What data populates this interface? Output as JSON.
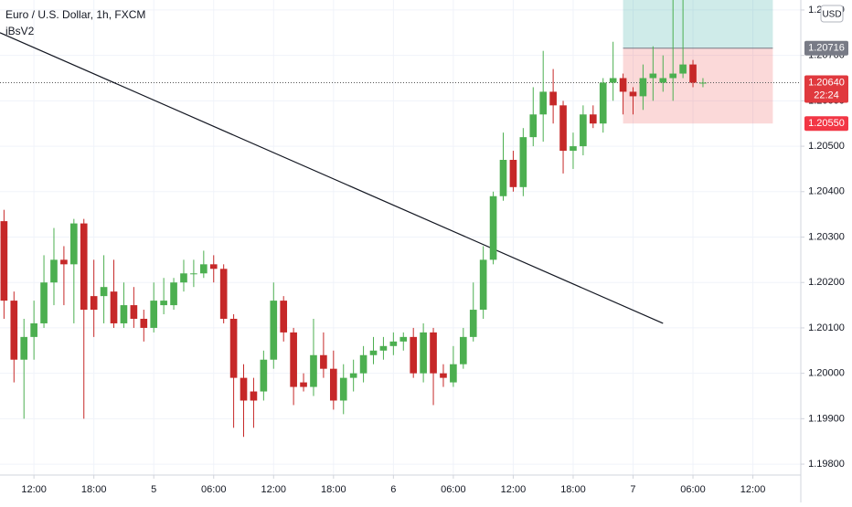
{
  "chart_data": {
    "type": "candlestick",
    "title": "Euro / U.S. Dollar, 1h, FXCM",
    "indicator": "iBsV2",
    "currency": "USD",
    "up_color": "#4caf50",
    "down_color": "#c62828",
    "x": [
      9,
      10,
      11,
      12,
      13,
      14,
      15,
      16,
      17,
      18,
      19,
      20,
      21,
      22,
      23,
      24,
      25,
      26,
      27,
      28,
      29,
      30,
      31,
      32,
      33,
      34,
      35,
      36,
      37,
      38,
      39,
      40,
      41,
      42,
      43,
      44,
      45,
      46,
      47,
      48,
      49,
      50,
      51,
      52,
      53,
      54,
      55,
      56,
      57,
      58,
      59,
      60,
      61,
      62,
      63,
      64,
      65,
      66,
      67,
      68,
      69,
      70,
      71,
      72,
      73,
      74,
      75,
      76,
      77,
      78,
      79
    ],
    "open": [
      1.20335,
      1.2016,
      1.2003,
      1.2008,
      1.2011,
      1.202,
      1.2025,
      1.2024,
      1.2033,
      1.2017,
      1.2017,
      1.2018,
      1.2011,
      1.2015,
      1.2012,
      1.201,
      1.2015,
      1.2015,
      1.202,
      1.2022,
      1.2022,
      1.2024,
      1.2023,
      1.2012,
      1.1999,
      1.1996,
      1.1996,
      1.2003,
      1.2016,
      1.2009,
      1.1998,
      1.1997,
      1.2004,
      1.2001,
      1.1994,
      1.1999,
      1.2,
      1.2004,
      1.2005,
      1.2006,
      1.2007,
      1.2008,
      1.2,
      1.2009,
      1.2,
      1.1998,
      1.2002,
      1.2008,
      1.2014,
      1.2025,
      1.2039,
      1.2047,
      1.2041,
      1.2052,
      1.2057,
      1.2062,
      1.2059,
      1.2049,
      1.205,
      1.2057,
      1.2055,
      1.2064,
      1.2065,
      1.2062,
      1.2061,
      1.2065,
      1.2064,
      1.2065,
      1.2066,
      1.2068,
      1.2064
    ],
    "high": [
      1.2036,
      1.2018,
      1.2012,
      1.2016,
      1.2026,
      1.2032,
      1.2028,
      1.2034,
      1.2034,
      1.2025,
      1.2026,
      1.2025,
      1.202,
      1.2019,
      1.2014,
      1.202,
      1.2021,
      1.2021,
      1.2025,
      1.2025,
      1.2027,
      1.2026,
      1.2024,
      1.2013,
      1.2002,
      1.1999,
      1.2005,
      1.202,
      1.2017,
      1.201,
      1.2,
      1.2012,
      1.2009,
      1.2005,
      1.2002,
      1.2003,
      1.2006,
      1.2008,
      1.2008,
      1.2009,
      1.2009,
      1.201,
      1.2011,
      1.201,
      1.2002,
      1.2006,
      1.201,
      1.202,
      1.2028,
      1.204,
      1.2053,
      1.2049,
      1.2054,
      1.2063,
      1.2071,
      1.2067,
      1.206,
      1.2053,
      1.2059,
      1.2059,
      1.2065,
      1.2073,
      1.2066,
      1.2063,
      1.2068,
      1.2072,
      1.207,
      1.2088,
      1.2085,
      1.2069,
      1.2065
    ],
    "low": [
      1.2012,
      1.1998,
      1.199,
      1.2003,
      1.201,
      1.2015,
      1.2015,
      1.2011,
      1.199,
      1.2008,
      1.2011,
      1.201,
      1.201,
      1.201,
      1.2007,
      1.2009,
      1.2013,
      1.2014,
      1.2018,
      1.2019,
      1.2021,
      1.202,
      1.2011,
      1.1988,
      1.1986,
      1.1988,
      1.1994,
      1.2001,
      1.2007,
      1.1993,
      1.1996,
      1.1995,
      1.1999,
      1.1992,
      1.1991,
      1.1996,
      1.1998,
      1.2002,
      1.2003,
      1.2004,
      1.2005,
      1.1999,
      1.1998,
      1.1993,
      1.1997,
      1.1997,
      1.2001,
      1.2007,
      1.2012,
      1.2024,
      1.2038,
      1.204,
      1.2039,
      1.205,
      1.2051,
      1.2055,
      1.2044,
      1.2045,
      1.2048,
      1.2054,
      1.2053,
      1.206,
      1.2057,
      1.2057,
      1.2058,
      1.206,
      1.2062,
      1.206,
      1.2065,
      1.2063,
      1.2063
    ],
    "close": [
      1.2016,
      1.2003,
      1.2008,
      1.2011,
      1.202,
      1.2025,
      1.2024,
      1.2033,
      1.2014,
      1.2014,
      1.2019,
      1.2011,
      1.2015,
      1.2012,
      1.201,
      1.2016,
      1.2016,
      1.202,
      1.2022,
      1.2022,
      1.2024,
      1.2023,
      1.2012,
      1.1999,
      1.1994,
      1.1994,
      1.2003,
      1.2016,
      1.2009,
      1.1997,
      1.1997,
      1.2004,
      1.2001,
      1.1994,
      1.1999,
      1.2,
      1.2004,
      1.2005,
      1.2006,
      1.2007,
      1.2008,
      1.2,
      1.2009,
      1.2,
      1.1999,
      1.2002,
      1.2008,
      1.2014,
      1.2025,
      1.2039,
      1.2047,
      1.2041,
      1.2052,
      1.2057,
      1.2062,
      1.2059,
      1.2049,
      1.205,
      1.2057,
      1.2055,
      1.2064,
      1.2065,
      1.2062,
      1.2061,
      1.2065,
      1.2066,
      1.2065,
      1.2066,
      1.2068,
      1.2064,
      1.2064
    ],
    "xlim": [
      8.6,
      88.8
    ],
    "ylim": [
      1.19776,
      1.20822
    ],
    "xticks": [
      {
        "value": 12,
        "label": "12:00"
      },
      {
        "value": 18,
        "label": "18:00"
      },
      {
        "value": 24,
        "label": "5"
      },
      {
        "value": 30,
        "label": "06:00"
      },
      {
        "value": 36,
        "label": "12:00"
      },
      {
        "value": 42,
        "label": "18:00"
      },
      {
        "value": 48,
        "label": "6"
      },
      {
        "value": 54,
        "label": "06:00"
      },
      {
        "value": 60,
        "label": "12:00"
      },
      {
        "value": 66,
        "label": "18:00"
      },
      {
        "value": 72,
        "label": "7"
      },
      {
        "value": 78,
        "label": "06:00"
      },
      {
        "value": 84,
        "label": "12:00"
      }
    ],
    "yticks": [
      {
        "value": 1.198,
        "label": "1.19800"
      },
      {
        "value": 1.199,
        "label": "1.19900"
      },
      {
        "value": 1.2,
        "label": "1.20000"
      },
      {
        "value": 1.201,
        "label": "1.20100"
      },
      {
        "value": 1.202,
        "label": "1.20200"
      },
      {
        "value": 1.203,
        "label": "1.20300"
      },
      {
        "value": 1.204,
        "label": "1.20400"
      },
      {
        "value": 1.205,
        "label": "1.20500"
      },
      {
        "value": 1.206,
        "label": "1.20600"
      },
      {
        "value": 1.207,
        "label": "1.20700"
      },
      {
        "value": 1.208,
        "label": "1.20800"
      }
    ],
    "grid": true,
    "trendline": {
      "x": [
        8.6,
        75
      ],
      "y": [
        1.2075,
        1.2011
      ],
      "color": "#131722"
    },
    "position": {
      "x": [
        71,
        86
      ],
      "target": 1.2085,
      "entry": {
        "value": 1.20716,
        "label": "1.20716"
      },
      "stop": {
        "value": 1.2055,
        "label": "1.20550"
      }
    },
    "last_price": {
      "value": 1.2064,
      "label": "1.20640",
      "countdown": "22:24"
    }
  }
}
